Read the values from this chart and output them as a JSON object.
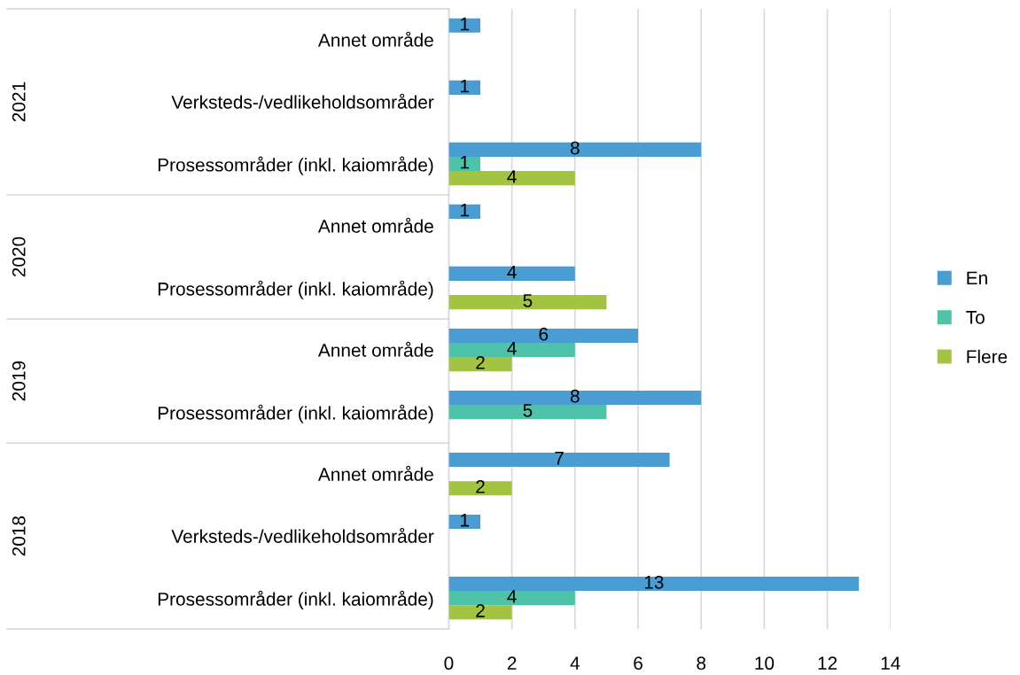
{
  "chart_data": {
    "type": "bar",
    "orientation": "horizontal",
    "categories": [
      "Annet område",
      "Verksteds-/vedlikeholdsområder",
      "Prosessområder (inkl. kaiområde)",
      "Annet område",
      "Prosessområder (inkl. kaiområde)",
      "Annet område",
      "Prosessområder (inkl. kaiområde)",
      "Annet område",
      "Verksteds-/vedlikeholdsområder",
      "Prosessområder (inkl. kaiområde)"
    ],
    "series": [
      {
        "name": "En",
        "color": "#4a9dd3",
        "values": [
          1,
          1,
          8,
          1,
          4,
          6,
          8,
          7,
          1,
          13
        ]
      },
      {
        "name": "To",
        "color": "#4fc3a9",
        "values": [
          null,
          null,
          1,
          null,
          null,
          4,
          5,
          null,
          null,
          4
        ]
      },
      {
        "name": "Flere",
        "color": "#a3c443",
        "values": [
          null,
          null,
          4,
          null,
          5,
          2,
          null,
          2,
          null,
          2
        ]
      }
    ],
    "annotations": [
      "2021",
      "2020",
      "2019",
      "2018"
    ],
    "xlim": [
      0,
      14
    ],
    "xticks": [
      0,
      2,
      4,
      6,
      8,
      10,
      12,
      14
    ],
    "grid": "x",
    "legend": "right",
    "data_labels": true
  }
}
